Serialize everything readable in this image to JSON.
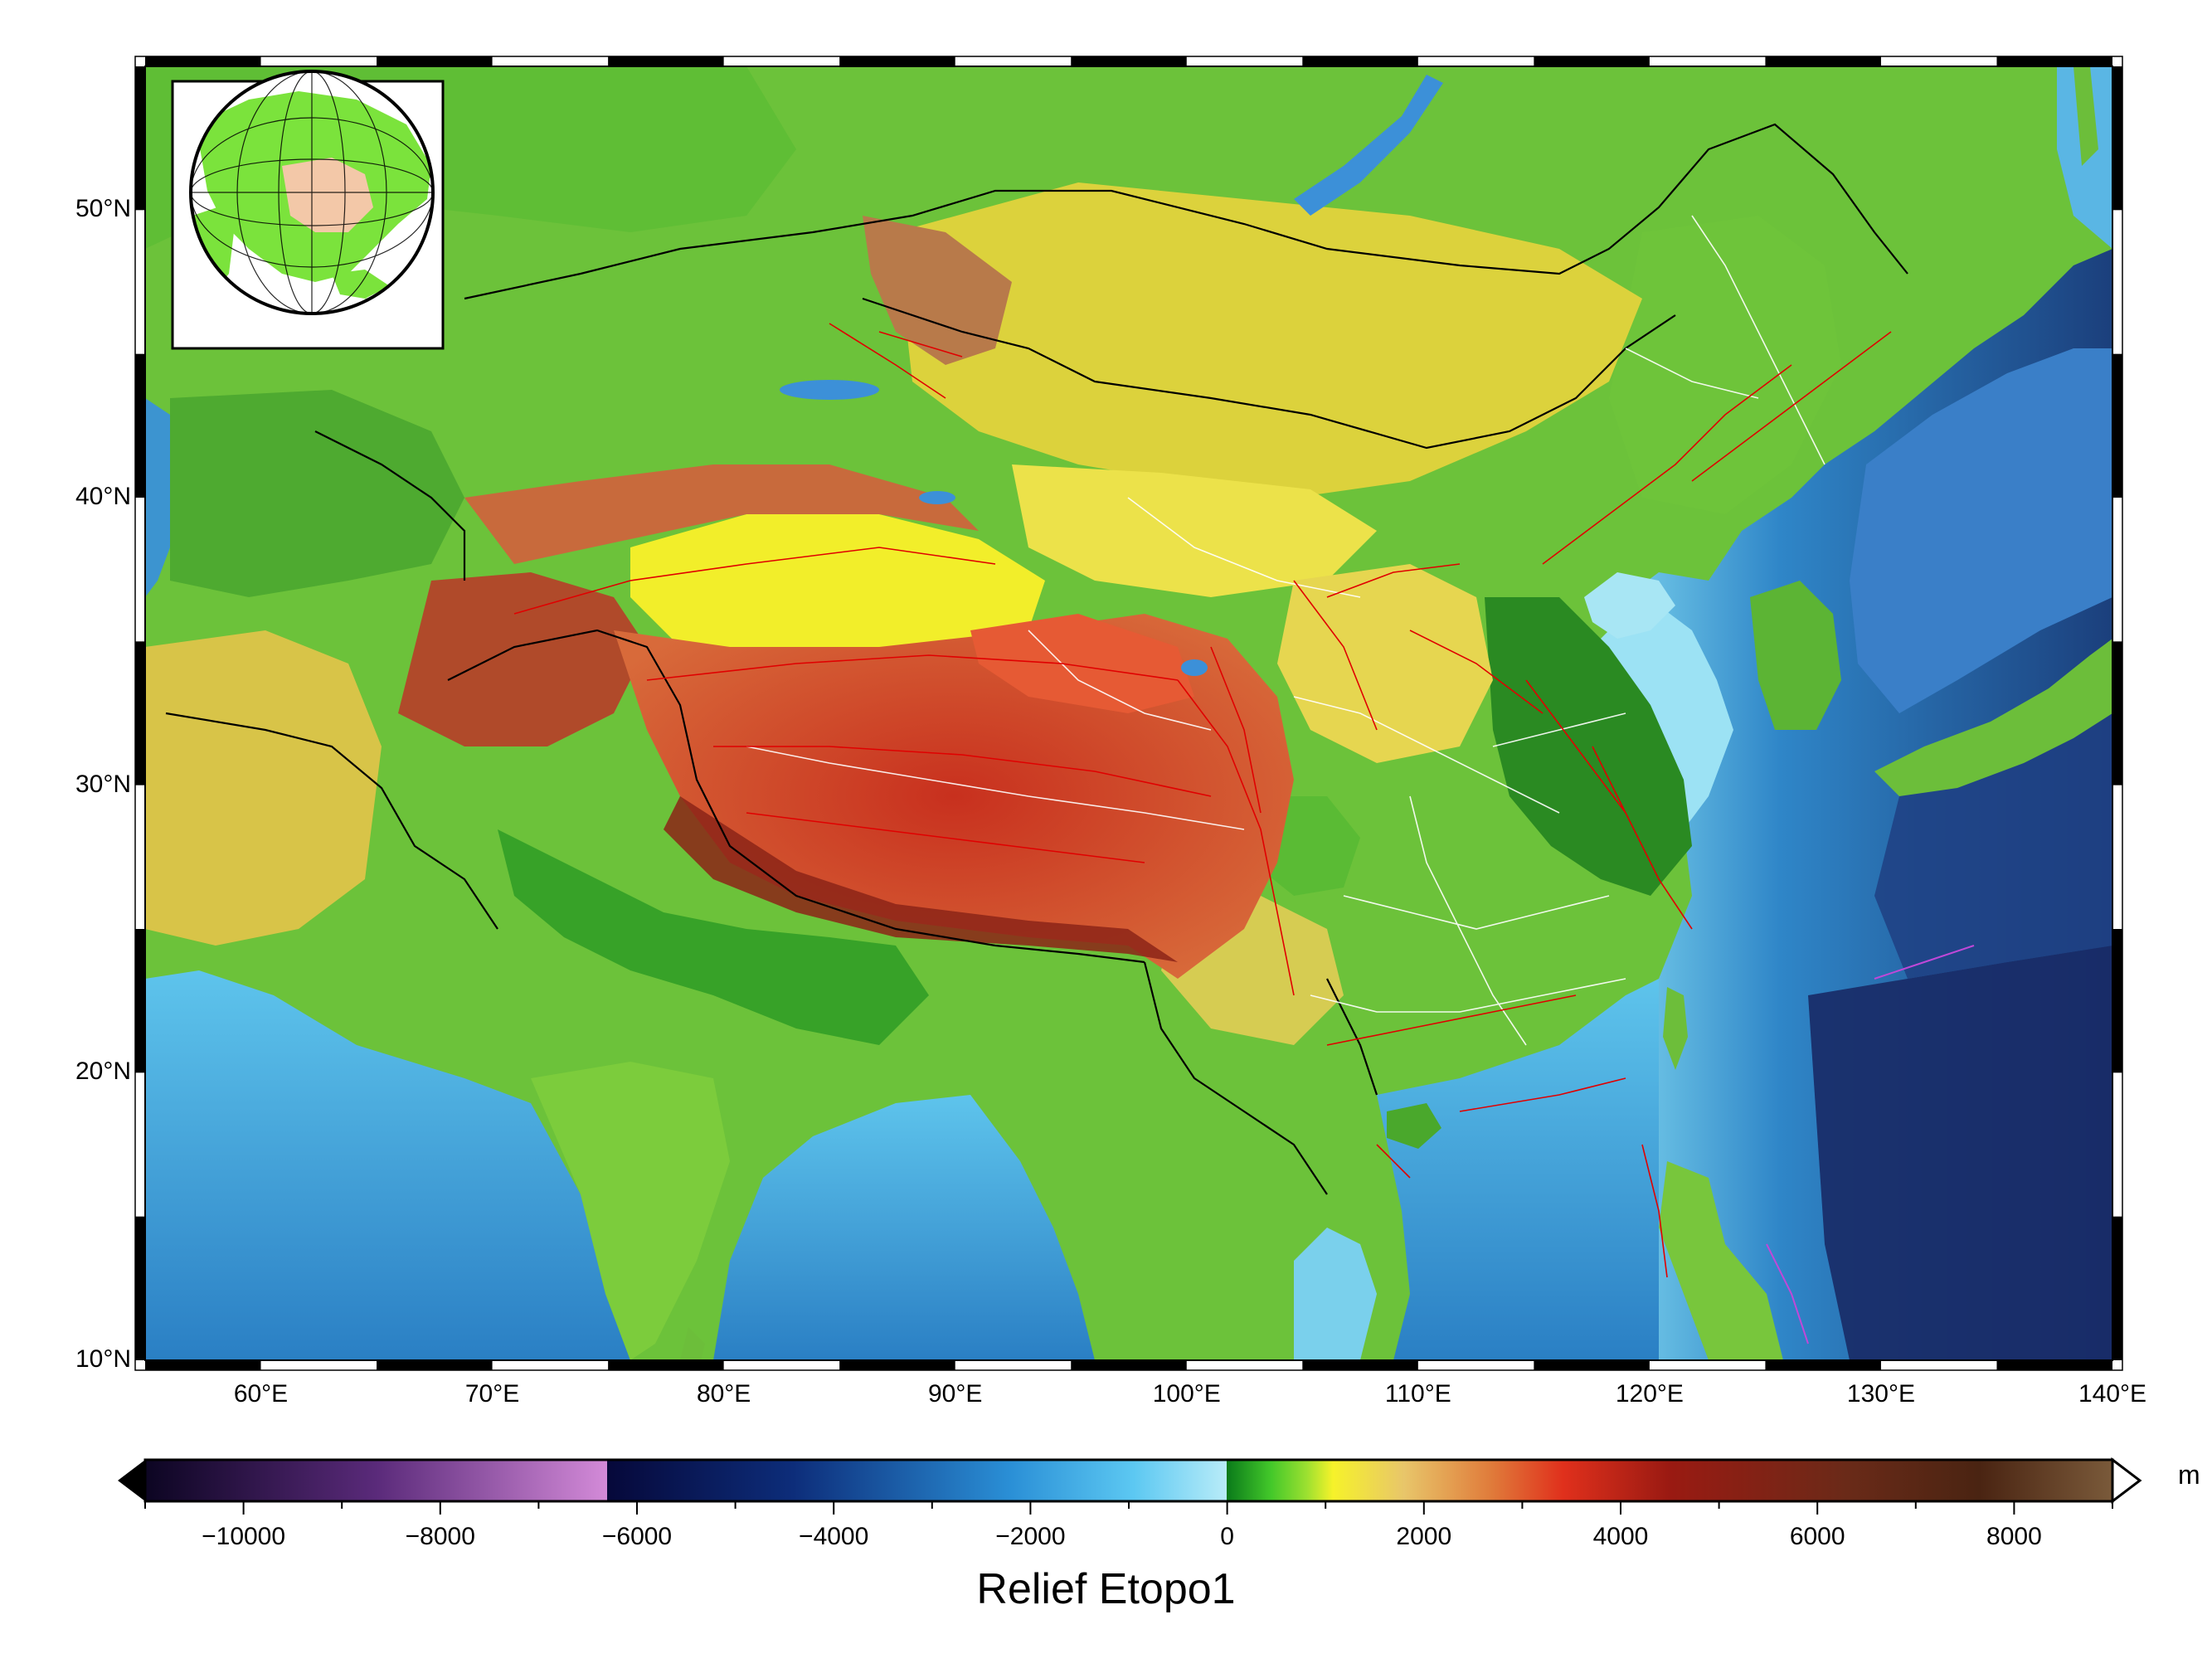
{
  "map": {
    "lat_range": [
      10,
      55
    ],
    "lon_range": [
      55,
      140
    ],
    "lat_labels": [
      {
        "value": 10,
        "text": "10°N"
      },
      {
        "value": 20,
        "text": "20°N"
      },
      {
        "value": 30,
        "text": "30°N"
      },
      {
        "value": 40,
        "text": "40°N"
      },
      {
        "value": 50,
        "text": "50°N"
      }
    ],
    "lon_labels": [
      {
        "value": 60,
        "text": "60°E"
      },
      {
        "value": 70,
        "text": "70°E"
      },
      {
        "value": 80,
        "text": "80°E"
      },
      {
        "value": 90,
        "text": "90°E"
      },
      {
        "value": 100,
        "text": "100°E"
      },
      {
        "value": 110,
        "text": "110°E"
      },
      {
        "value": 120,
        "text": "120°E"
      },
      {
        "value": 130,
        "text": "130°E"
      },
      {
        "value": 140,
        "text": "140°E"
      }
    ],
    "colors": {
      "lowland": "#3fae2a",
      "plain": "#7fd23a",
      "plateau": "#e8e43c",
      "highland": "#d84a2a",
      "peak": "#8c2a18",
      "shallow_sea": "#8fdcf0",
      "sea": "#2f8fd0",
      "deep_sea": "#14305f",
      "fault": "#e00000",
      "province_border": "#ffffff",
      "country_border": "#000000"
    }
  },
  "inset": {
    "globe_land": "#7be33c",
    "globe_highlight": "#f3c8a8",
    "globe_ocean": "#ffffff"
  },
  "colorbar": {
    "title": "Relief Etopo1",
    "unit": "m",
    "range": [
      -11000,
      9000
    ],
    "tick_labels": [
      {
        "value": -10000,
        "text": "−10000"
      },
      {
        "value": -8000,
        "text": "−8000"
      },
      {
        "value": -6000,
        "text": "−6000"
      },
      {
        "value": -4000,
        "text": "−4000"
      },
      {
        "value": -2000,
        "text": "−2000"
      },
      {
        "value": 0,
        "text": "0"
      },
      {
        "value": 2000,
        "text": "2000"
      },
      {
        "value": 4000,
        "text": "4000"
      },
      {
        "value": 6000,
        "text": "6000"
      },
      {
        "value": 8000,
        "text": "8000"
      }
    ]
  }
}
